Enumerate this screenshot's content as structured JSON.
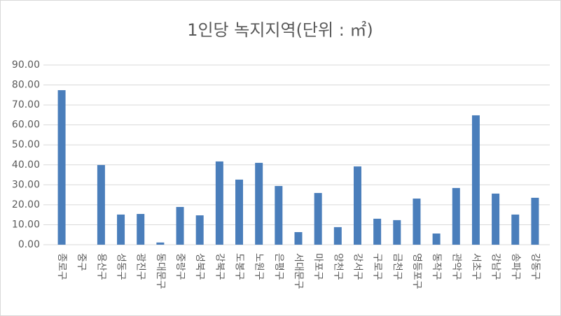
{
  "chart_data": {
    "type": "bar",
    "title": "1인당 녹지지역(단위 : ㎡)",
    "categories": [
      "종로구",
      "중구",
      "용산구",
      "성동구",
      "광진구",
      "동대문구",
      "중랑구",
      "성북구",
      "강북구",
      "도봉구",
      "노원구",
      "은평구",
      "서대문구",
      "마포구",
      "양천구",
      "강서구",
      "구로구",
      "금천구",
      "영등포구",
      "동작구",
      "관악구",
      "서초구",
      "강남구",
      "송파구",
      "강동구"
    ],
    "values": [
      77.4,
      0,
      39.9,
      15.1,
      15.4,
      1.1,
      18.9,
      14.7,
      41.7,
      32.6,
      41.0,
      29.4,
      6.3,
      25.9,
      8.8,
      39.2,
      13.0,
      12.3,
      23.1,
      5.6,
      28.4,
      64.8,
      25.6,
      15.1,
      23.5
    ],
    "color": "#4a7ebb",
    "ylim": [
      0,
      90
    ],
    "yticks": [
      {
        "value": 0,
        "label": "0.00"
      },
      {
        "value": 10,
        "label": "10.00"
      },
      {
        "value": 20,
        "label": "20.00"
      },
      {
        "value": 30,
        "label": "30.00"
      },
      {
        "value": 40,
        "label": "40.00"
      },
      {
        "value": 50,
        "label": "50.00"
      },
      {
        "value": 60,
        "label": "60.00"
      },
      {
        "value": 70,
        "label": "70.00"
      },
      {
        "value": 80,
        "label": "80.00"
      },
      {
        "value": 90,
        "label": "90.00"
      }
    ],
    "grid": true
  }
}
